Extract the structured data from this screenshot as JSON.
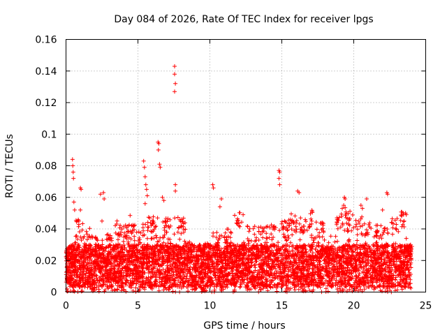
{
  "chart_data": {
    "type": "scatter",
    "title": "Day 084 of 2026, Rate Of TEC Index for receiver lpgs",
    "xlabel": "GPS time / hours",
    "ylabel": "ROTI / TECUs",
    "xlim": [
      0,
      25
    ],
    "ylim": [
      0,
      0.16
    ],
    "grid": true,
    "marker": "+",
    "color": "#ff0000",
    "x_ticks": [
      0,
      5,
      10,
      15,
      20,
      25
    ],
    "x_tick_labels": [
      "0",
      "5",
      "10",
      "15",
      "20",
      "25"
    ],
    "y_ticks": [
      0,
      0.02,
      0.04,
      0.06,
      0.08,
      0.1,
      0.12,
      0.14,
      0.16
    ],
    "y_tick_labels": [
      "0",
      "0.02",
      "0.04",
      "0.06",
      "0.08",
      "0.1",
      "0.12",
      "0.14",
      "0.16"
    ],
    "data_x_range": [
      0,
      24
    ],
    "baseline_band": [
      0.003,
      0.03
    ],
    "series": [
      {
        "name": "ROTI",
        "points": [
          [
            0.45,
            0.084
          ],
          [
            0.47,
            0.08
          ],
          [
            0.5,
            0.076
          ],
          [
            0.52,
            0.072
          ],
          [
            0.55,
            0.057
          ],
          [
            0.6,
            0.052
          ],
          [
            1.0,
            0.066
          ],
          [
            1.05,
            0.065
          ],
          [
            1.0,
            0.052
          ],
          [
            0.9,
            0.045
          ],
          [
            2.4,
            0.062
          ],
          [
            2.6,
            0.063
          ],
          [
            2.65,
            0.059
          ],
          [
            2.5,
            0.045
          ],
          [
            5.4,
            0.083
          ],
          [
            5.45,
            0.079
          ],
          [
            5.5,
            0.073
          ],
          [
            5.55,
            0.068
          ],
          [
            5.6,
            0.065
          ],
          [
            5.65,
            0.061
          ],
          [
            5.5,
            0.056
          ],
          [
            6.4,
            0.095
          ],
          [
            6.45,
            0.094
          ],
          [
            6.42,
            0.09
          ],
          [
            6.5,
            0.081
          ],
          [
            6.55,
            0.079
          ],
          [
            6.7,
            0.06
          ],
          [
            6.8,
            0.058
          ],
          [
            7.55,
            0.143
          ],
          [
            7.55,
            0.138
          ],
          [
            7.6,
            0.132
          ],
          [
            7.55,
            0.127
          ],
          [
            7.6,
            0.068
          ],
          [
            7.6,
            0.064
          ],
          [
            10.2,
            0.068
          ],
          [
            10.25,
            0.066
          ],
          [
            10.8,
            0.059
          ],
          [
            10.7,
            0.054
          ],
          [
            14.8,
            0.077
          ],
          [
            14.85,
            0.076
          ],
          [
            14.8,
            0.072
          ],
          [
            14.85,
            0.068
          ],
          [
            16.1,
            0.064
          ],
          [
            16.2,
            0.063
          ],
          [
            19.35,
            0.06
          ],
          [
            19.4,
            0.059
          ],
          [
            19.3,
            0.055
          ],
          [
            19.2,
            0.053
          ],
          [
            20.5,
            0.055
          ],
          [
            20.6,
            0.053
          ],
          [
            20.9,
            0.059
          ],
          [
            22.3,
            0.063
          ],
          [
            22.35,
            0.062
          ],
          [
            22.0,
            0.052
          ],
          [
            23.6,
            0.05
          ],
          [
            23.65,
            0.049
          ],
          [
            23.5,
            0.045
          ]
        ],
        "band_peaks": [
          [
            0.3,
            0.03
          ],
          [
            0.8,
            0.046
          ],
          [
            1.6,
            0.041
          ],
          [
            2.2,
            0.035
          ],
          [
            3.0,
            0.038
          ],
          [
            3.6,
            0.046
          ],
          [
            4.2,
            0.043
          ],
          [
            4.6,
            0.05
          ],
          [
            5.2,
            0.044
          ],
          [
            6.0,
            0.048
          ],
          [
            7.0,
            0.047
          ],
          [
            8.1,
            0.048
          ],
          [
            8.6,
            0.032
          ],
          [
            9.2,
            0.03
          ],
          [
            9.8,
            0.032
          ],
          [
            10.4,
            0.038
          ],
          [
            11.2,
            0.04
          ],
          [
            12.0,
            0.052
          ],
          [
            12.8,
            0.042
          ],
          [
            13.6,
            0.043
          ],
          [
            14.4,
            0.045
          ],
          [
            15.2,
            0.046
          ],
          [
            15.8,
            0.05
          ],
          [
            16.4,
            0.048
          ],
          [
            17.0,
            0.052
          ],
          [
            17.8,
            0.044
          ],
          [
            18.4,
            0.036
          ],
          [
            19.0,
            0.05
          ],
          [
            19.6,
            0.054
          ],
          [
            20.3,
            0.048
          ],
          [
            21.0,
            0.046
          ],
          [
            21.6,
            0.043
          ],
          [
            22.2,
            0.042
          ],
          [
            22.8,
            0.048
          ],
          [
            23.4,
            0.052
          ],
          [
            23.9,
            0.03
          ]
        ]
      }
    ]
  }
}
